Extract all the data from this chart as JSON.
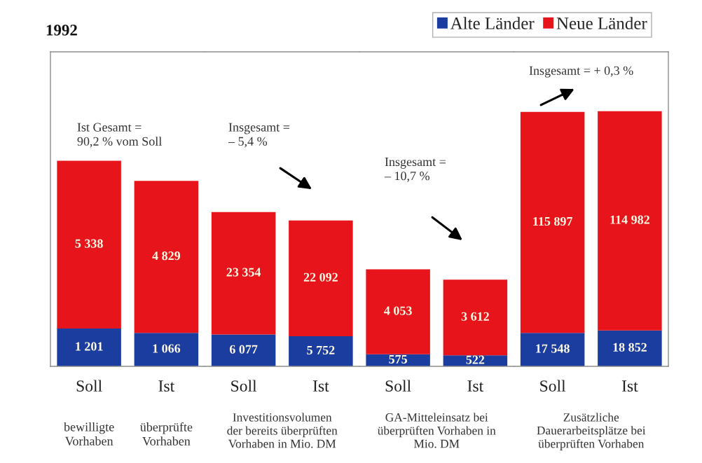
{
  "chart_data": [
    {
      "type": "bar",
      "title": "1992",
      "categories": [
        "Soll",
        "Ist"
      ],
      "stacked": true,
      "ylim": [
        0,
        10000
      ],
      "tick_labels": "x",
      "legend": "top right",
      "series": [
        {
          "name": "Alte Länder",
          "color": "#1b3d9f",
          "values": [
            1201,
            1066
          ],
          "value_labels": [
            "1 201",
            "1 066"
          ]
        },
        {
          "name": "Neue Länder",
          "color": "#e8141b",
          "values": [
            5338,
            4829
          ],
          "value_labels": [
            "5 338",
            "4 829"
          ]
        }
      ],
      "annotations": [
        "Ist Gesamt =\n90,2 % vom Soll",
        "bewilligte\nVorhaben",
        "überprüfte\nVorhaben"
      ]
    },
    {
      "type": "bar",
      "categories": [
        "Soll",
        "Ist"
      ],
      "stacked": true,
      "ylim": [
        0,
        60000
      ],
      "tick_labels": "x",
      "xlabel": "Investitionsvolumen\nder bereits überprüften\nVorhaben in Mio. DM",
      "series": [
        {
          "color": "#1b3d9f",
          "values": [
            6077,
            5752
          ],
          "value_labels": [
            "6 077",
            "5 752"
          ]
        },
        {
          "color": "#e8141b",
          "values": [
            23354,
            22092
          ],
          "value_labels": [
            "23 354",
            "22 092"
          ]
        }
      ],
      "annotations": [
        "Insgesamt =\n– 5,4 %"
      ]
    },
    {
      "type": "bar",
      "categories": [
        "Soll",
        "Ist"
      ],
      "stacked": true,
      "ylim": [
        0,
        15000
      ],
      "tick_labels": "x",
      "xlabel": "GA-Mitteleinsatz bei\nüberprüften Vorhaben in\nMio. DM",
      "series": [
        {
          "color": "#1b3d9f",
          "values": [
            575,
            522
          ],
          "value_labels": [
            "575",
            "522"
          ]
        },
        {
          "color": "#e8141b",
          "values": [
            4053,
            3612
          ],
          "value_labels": [
            "4 053",
            "3 612"
          ]
        }
      ],
      "annotations": [
        "Insgesamt =\n– 10,7 %"
      ]
    },
    {
      "type": "bar",
      "categories": [
        "Soll",
        "Ist"
      ],
      "stacked": true,
      "ylim": [
        0,
        165000
      ],
      "tick_labels": "x",
      "xlabel": "Zusätzliche\nDauerarbeitsplätze bei\nüberprüften Vorhaben",
      "series": [
        {
          "color": "#1b3d9f",
          "values": [
            17548,
            18852
          ],
          "value_labels": [
            "17 548",
            "18 852"
          ]
        },
        {
          "color": "#e8141b",
          "values": [
            115897,
            114982
          ],
          "value_labels": [
            "115 897",
            "114 982"
          ]
        }
      ],
      "annotations": [
        "Insgesamt = + 0,3 %"
      ]
    }
  ]
}
